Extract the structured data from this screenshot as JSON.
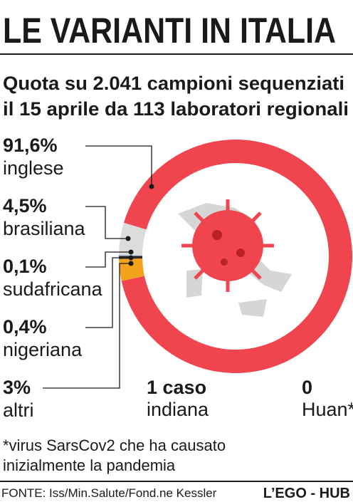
{
  "chart_data": {
    "type": "pie",
    "title": "LE VARIANTI IN ITALIA",
    "subtitle": [
      "Quota su 2.041 campioni sequenziati",
      "il 15 aprile da 113 laboratori regionali"
    ],
    "categories": [
      "inglese",
      "brasiliana",
      "sudafricana",
      "nigeriana",
      "altri"
    ],
    "values": [
      91.6,
      4.5,
      0.1,
      0.4,
      3
    ],
    "value_labels": [
      "91,6%",
      "4,5%",
      "0,1%",
      "0,4%",
      "3%"
    ],
    "colors": [
      "#f0454f",
      "#dcdcdc",
      "#4d6f9a",
      "#2b2b2b",
      "#f3a21c"
    ],
    "notes": [
      {
        "value": "1 caso",
        "label": "indiana"
      },
      {
        "value": "0",
        "label": "Huan*"
      }
    ],
    "footnote": [
      "*virus SarsCov2 che ha causato",
      "inizialmente la pandemia"
    ],
    "source": "FONTE: Iss/Min.Salute/Fond.ne Kessler",
    "credit": "L’EGO - HUB"
  }
}
